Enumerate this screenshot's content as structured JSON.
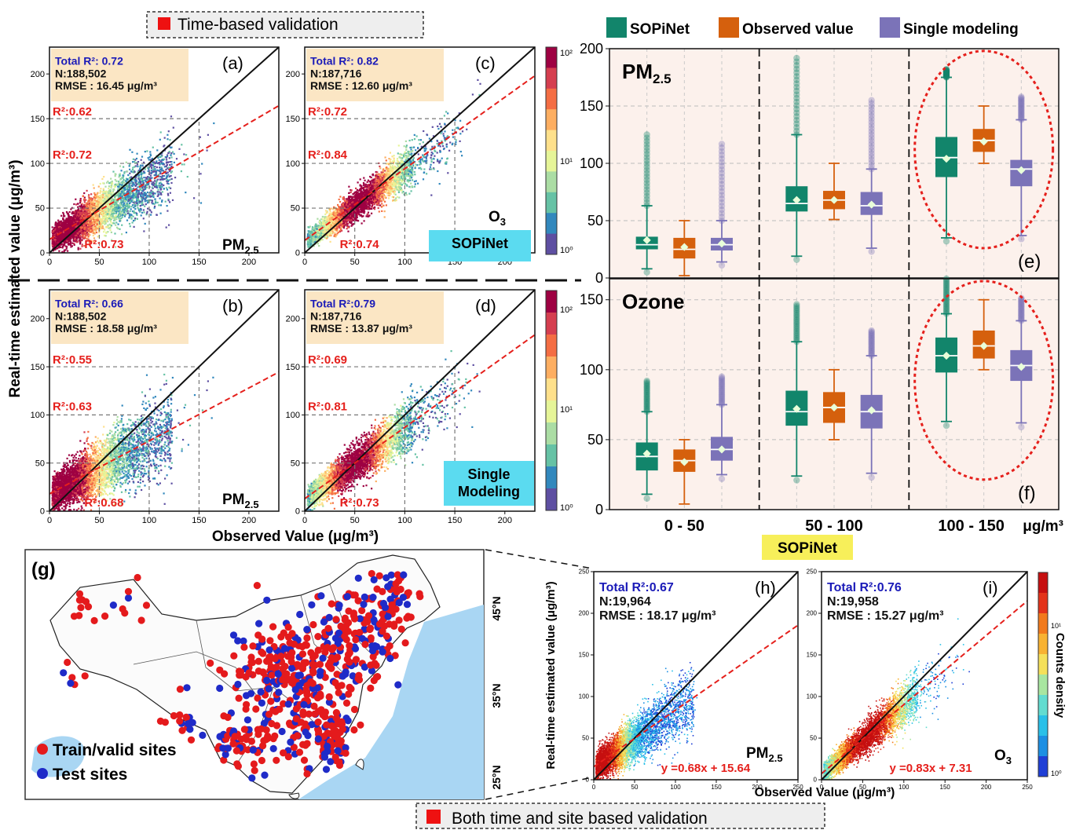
{
  "headers": {
    "top": "Time-based validation",
    "bottom": "Both time and site based validation"
  },
  "colors": {
    "sopinet": "#12856b",
    "observed": "#d5600d",
    "single": "#7b73b8",
    "fit": "#e5201c",
    "annot_bg": "#fbe6c4",
    "model_tag_bg": "#5bdbf0",
    "box_panel_bg": "#fcf1ec",
    "sopinet_tag_bg": "#f7ef5a",
    "train_site": "#e41a1c",
    "test_site": "#1f2bc8",
    "water": "#a9d6f3"
  },
  "chart_data": [
    {
      "panel": "(a)",
      "type": "scatter",
      "style": "density",
      "pollutant": "PM2.5",
      "stats": [
        "Total R²:  0.72",
        "N:188,502",
        "RMSE : 16.45 μg/m³"
      ],
      "segment_r2": [
        "R²:0.62",
        "R²:0.72",
        "R²:0.73"
      ],
      "fit": {
        "slope": 0.65,
        "intercept": 15
      },
      "xlim": [
        0,
        230
      ],
      "ylim": [
        0,
        230
      ],
      "xticks": [
        0,
        50,
        100,
        150,
        200
      ],
      "yticks": [
        0,
        50,
        100,
        150,
        200
      ]
    },
    {
      "panel": "(c)",
      "type": "scatter",
      "style": "density",
      "pollutant": "O3",
      "model_label": "SOPiNet",
      "stats": [
        "Total R²: 0.82",
        "N:187,716",
        "RMSE : 12.60  μg/m³"
      ],
      "segment_r2": [
        "R²:0.72",
        "R²:0.84",
        "R²:0.74"
      ],
      "fit": {
        "slope": 0.8,
        "intercept": 14
      },
      "xlim": [
        0,
        230
      ],
      "ylim": [
        0,
        230
      ],
      "xticks": [
        0,
        50,
        100,
        150,
        200
      ],
      "yticks": [
        0,
        50,
        100,
        150,
        200
      ]
    },
    {
      "panel": "(b)",
      "type": "scatter",
      "style": "density",
      "pollutant": "PM2.5",
      "stats": [
        "Total  R²: 0.66",
        "N:188,502",
        "RMSE : 18.58  μg/m³"
      ],
      "segment_r2": [
        "R²:0.55",
        "R²:0.63",
        "R²:0.68"
      ],
      "fit": {
        "slope": 0.55,
        "intercept": 18
      },
      "xlim": [
        0,
        230
      ],
      "ylim": [
        0,
        230
      ],
      "xticks": [
        0,
        50,
        100,
        150,
        200
      ],
      "yticks": [
        0,
        50,
        100,
        150,
        200
      ]
    },
    {
      "panel": "(d)",
      "type": "scatter",
      "style": "density",
      "pollutant": "O3",
      "model_label": "Single Modeling",
      "stats": [
        "Total R²:0.79",
        "N:187,716",
        "RMSE : 13.87 μg/m³"
      ],
      "segment_r2": [
        "R²:0.69",
        "R²:0.81",
        "R²:0.73"
      ],
      "fit": {
        "slope": 0.74,
        "intercept": 13
      },
      "xlim": [
        0,
        230
      ],
      "ylim": [
        0,
        230
      ],
      "xticks": [
        0,
        50,
        100,
        150,
        200
      ],
      "yticks": [
        0,
        50,
        100,
        150,
        200
      ]
    },
    {
      "panel": "colorbar-top",
      "type": "heatmap",
      "scale": "log",
      "ticks": [
        "10²",
        "10¹",
        "10⁰"
      ]
    },
    {
      "panel": "(e)",
      "type": "box",
      "title": "PM2.5",
      "ylim": [
        0,
        200
      ],
      "yticks": [
        0,
        50,
        100,
        150,
        200
      ],
      "groups": [
        "0 - 50",
        "50 - 100",
        "100 - 150"
      ],
      "series_names": [
        "SOPiNet",
        "Observed value",
        "Single modeling"
      ],
      "boxes": [
        [
          [
            8,
            25,
            29,
            36,
            63,
            33
          ],
          [
            2,
            17,
            25,
            35,
            50,
            27
          ],
          [
            14,
            24,
            29,
            35,
            50,
            30
          ]
        ],
        [
          [
            19,
            58,
            65,
            80,
            125,
            68
          ],
          [
            51,
            60,
            68,
            76,
            100,
            68
          ],
          [
            26,
            55,
            63,
            75,
            95,
            64
          ]
        ],
        [
          [
            35,
            88,
            105,
            123,
            175,
            104
          ],
          [
            100,
            110,
            120,
            130,
            150,
            119
          ],
          [
            37,
            80,
            95,
            103,
            138,
            94
          ]
        ]
      ],
      "outlier_max": [
        [
          125,
          null,
          120
        ],
        [
          195,
          null,
          155
        ],
        [
          182,
          null,
          158
        ]
      ]
    },
    {
      "panel": "(f)",
      "type": "box",
      "title": "Ozone",
      "ylim": [
        0,
        165
      ],
      "yticks": [
        0,
        50,
        100,
        150
      ],
      "groups": [
        "0 - 50",
        "50 - 100",
        "100 - 150"
      ],
      "series_names": [
        "SOPiNet",
        "Observed value",
        "Single modeling"
      ],
      "boxes": [
        [
          [
            11,
            28,
            38,
            48,
            70,
            40
          ],
          [
            4,
            27,
            35,
            43,
            50,
            34
          ],
          [
            25,
            35,
            43,
            52,
            75,
            43
          ]
        ],
        [
          [
            24,
            60,
            70,
            85,
            120,
            72
          ],
          [
            50,
            62,
            73,
            84,
            100,
            73
          ],
          [
            26,
            58,
            70,
            82,
            110,
            71
          ]
        ],
        [
          [
            63,
            98,
            110,
            123,
            140,
            110
          ],
          [
            100,
            108,
            117,
            128,
            150,
            117
          ],
          [
            62,
            92,
            103,
            114,
            135,
            102
          ]
        ]
      ],
      "outlier_max": [
        [
          92,
          null,
          95
        ],
        [
          148,
          null,
          128
        ],
        [
          165,
          null,
          152
        ]
      ]
    },
    {
      "panel": "(h)",
      "type": "scatter",
      "style": "density",
      "pollutant": "PM2.5",
      "stats": [
        "Total R²:0.67",
        "N:19,964",
        "RMSE : 18.17 μg/m³"
      ],
      "equation": "y =0.68x + 15.64",
      "fit": {
        "slope": 0.68,
        "intercept": 15.64
      },
      "xlim": [
        0,
        250
      ],
      "ylim": [
        0,
        250
      ],
      "xticks": [
        0,
        50,
        100,
        150,
        200,
        250
      ],
      "yticks": [
        0,
        50,
        100,
        150,
        200,
        250
      ]
    },
    {
      "panel": "(i)",
      "type": "scatter",
      "style": "density",
      "pollutant": "O3",
      "stats": [
        "Total R²:0.76",
        "N:19,958",
        "RMSE : 15.27 μg/m³"
      ],
      "equation": "y =0.83x + 7.31",
      "fit": {
        "slope": 0.83,
        "intercept": 7.31
      },
      "xlim": [
        0,
        250
      ],
      "ylim": [
        0,
        250
      ],
      "xticks": [
        0,
        50,
        100,
        150,
        200,
        250
      ],
      "yticks": [
        0,
        50,
        100,
        150,
        200,
        250
      ]
    },
    {
      "panel": "colorbar-bottom",
      "type": "heatmap",
      "scale": "log",
      "label": "Counts density",
      "ticks": [
        "10¹",
        "10⁰"
      ]
    },
    {
      "panel": "(g)",
      "type": "map",
      "lat_labels": [
        "45°N",
        "35°N",
        "25°N"
      ],
      "legend": [
        "Train/valid sites",
        "Test sites"
      ]
    }
  ],
  "labels": {
    "left_ylabel": "Real-time estimated value (μg/m³)",
    "left_xlabel": "Observed Value (μg/m³)",
    "box_xlabel_unit": "μg/m³",
    "box_model_tag": "SOPiNet",
    "bottom_ylabel": "Real-time estimated value (μg/m³)",
    "bottom_xlabel": "Observed Value (μg/m³)"
  }
}
